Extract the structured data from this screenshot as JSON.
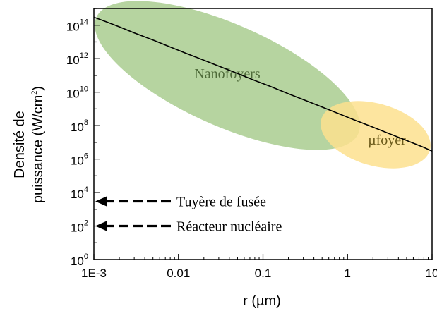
{
  "chart_data": {
    "type": "line",
    "title": "",
    "xlabel": "r (µm)",
    "ylabel_line1": "Densité de",
    "ylabel_line2": "puissance (W/cm",
    "ylabel_sup": "2",
    "ylabel_end": ")",
    "xscale": "log",
    "yscale": "log",
    "xlim": [
      0.001,
      10
    ],
    "ylim": [
      1,
      1000000000000000.0
    ],
    "grid": false,
    "x_ticks": [
      {
        "value": 0.001,
        "label": "1E-3"
      },
      {
        "value": 0.01,
        "label": "0.01"
      },
      {
        "value": 0.1,
        "label": "0.1"
      },
      {
        "value": 1,
        "label": "1"
      },
      {
        "value": 10,
        "label": "10"
      }
    ],
    "y_ticks": [
      {
        "value": 1,
        "base": "10",
        "exp": "0"
      },
      {
        "value": 100,
        "base": "10",
        "exp": "2"
      },
      {
        "value": 10000,
        "base": "10",
        "exp": "4"
      },
      {
        "value": 1000000,
        "base": "10",
        "exp": "6"
      },
      {
        "value": 100000000,
        "base": "10",
        "exp": "8"
      },
      {
        "value": 10000000000,
        "base": "10",
        "exp": "10"
      },
      {
        "value": 1000000000000,
        "base": "10",
        "exp": "12"
      },
      {
        "value": 100000000000000,
        "base": "10",
        "exp": "14"
      }
    ],
    "series": [
      {
        "x": [
          0.001,
          0.0014,
          0.002,
          0.003,
          0.005,
          0.008,
          0.012,
          0.018,
          0.03,
          0.05,
          0.08,
          0.12,
          0.2,
          0.3,
          0.5,
          0.8,
          1.2,
          1.8,
          3,
          5,
          8,
          10
        ],
        "y": [
          300000000000000.0,
          160000000000000.0,
          80000000000000.0,
          35000000000000.0,
          13000000000000.0,
          5000000000000.0,
          2200000000000.0,
          1000000000000.0,
          360000000000.0,
          130000000000.0,
          50000000000.0,
          23000000000.0,
          8000000000.0,
          3600000000.0,
          1300000000.0,
          500000000.0,
          220000000.0,
          100000000.0,
          36000000.0,
          13000000.0,
          5000000.0,
          3000000.0
        ],
        "color": "#000000"
      }
    ],
    "regions": [
      {
        "label": "Nanofoyers",
        "center_x": 0.03,
        "center_y": 10000000000.0,
        "color": "#a9cd8f",
        "text_color": "#4f6b3a"
      },
      {
        "label": "µfoyer",
        "center_x": 3,
        "center_y": 3000000.0,
        "color": "#fde08e",
        "text_color": "#6b5a1a"
      }
    ],
    "annotations": [
      {
        "label": "Tuyère de fusée",
        "y": 3000
      },
      {
        "label": "Réacteur nucléaire",
        "y": 100
      }
    ]
  }
}
